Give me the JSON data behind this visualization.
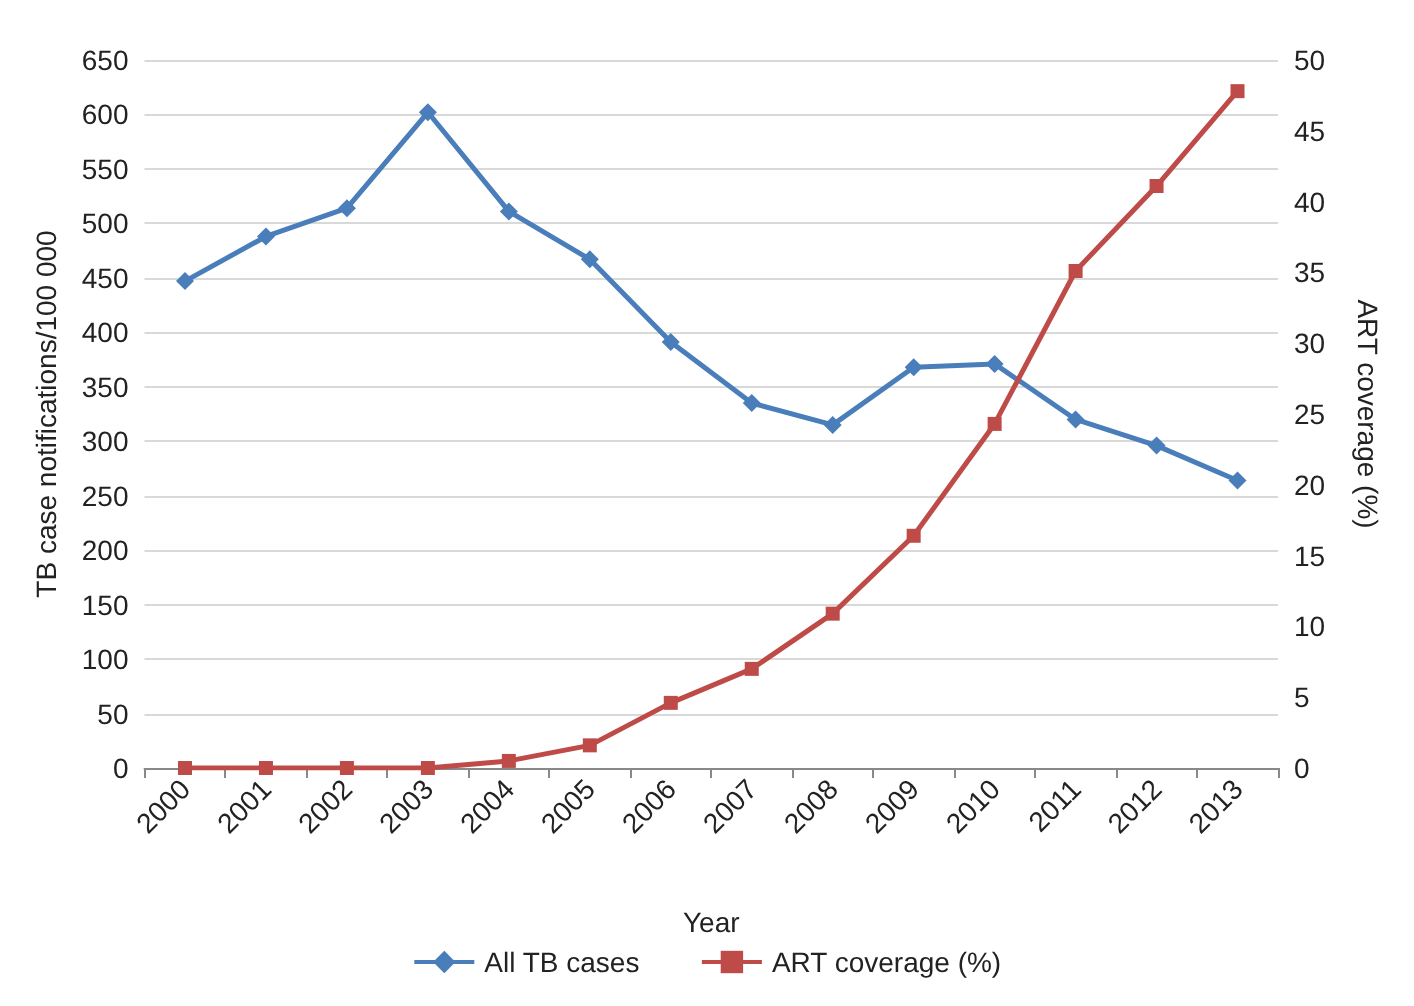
{
  "chart_data": {
    "type": "line",
    "xlabel": "Year",
    "ylabel": "TB case notifications/100 000",
    "y2label": "ART coverage (%)",
    "categories": [
      "2000",
      "2001",
      "2002",
      "2003",
      "2004",
      "2005",
      "2006",
      "2007",
      "2008",
      "2009",
      "2010",
      "2011",
      "2012",
      "2013"
    ],
    "series": [
      {
        "name": "All TB cases",
        "color": "#4a7ebb",
        "marker": "diamond",
        "values": [
          447,
          488,
          514,
          602,
          511,
          467,
          391,
          335,
          315,
          368,
          371,
          320,
          296,
          264
        ]
      },
      {
        "name": "ART coverage (%)",
        "color": "#be4b48",
        "marker": "square",
        "axis": "y2",
        "values": [
          0,
          0,
          0,
          0,
          0.5,
          1.6,
          4.6,
          7.0,
          10.9,
          16.4,
          24.3,
          35.1,
          41.1,
          47.8
        ]
      }
    ],
    "ylim": [
      0,
      650
    ],
    "yticks": [
      0,
      50,
      100,
      150,
      200,
      250,
      300,
      350,
      400,
      450,
      500,
      550,
      600,
      650
    ],
    "y2lim": [
      0,
      50
    ],
    "y2ticks": [
      0,
      5,
      10,
      15,
      20,
      25,
      30,
      35,
      40,
      45,
      50
    ],
    "grid": "y",
    "legend": "bottom"
  }
}
